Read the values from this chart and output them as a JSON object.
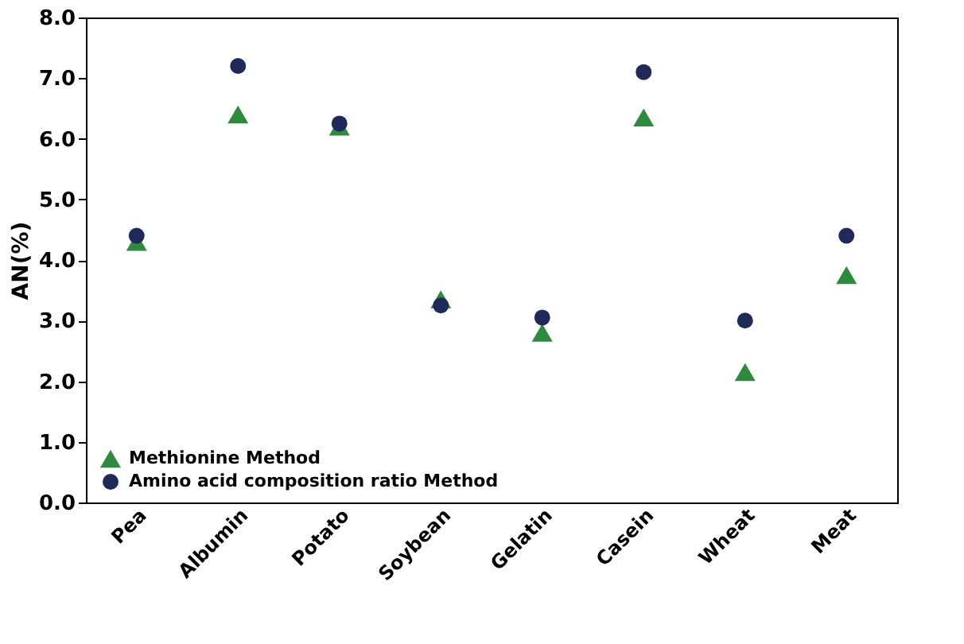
{
  "chart_data": {
    "type": "scatter",
    "ylabel": "AN(%)",
    "categories": [
      "Pea",
      "Albumin",
      "Potato",
      "Soybean",
      "Gelatin",
      "Casein",
      "Wheat",
      "Meat"
    ],
    "series": [
      {
        "name": "Methionine Method",
        "color": "#2e8b3e",
        "marker": "triangle",
        "values": [
          4.3,
          6.4,
          6.2,
          3.35,
          2.8,
          6.35,
          2.15,
          3.75
        ]
      },
      {
        "name": "Amino acid composition ratio Method",
        "color": "#1f2a5a",
        "marker": "circle",
        "values": [
          4.4,
          7.2,
          6.25,
          3.25,
          3.05,
          7.1,
          3.0,
          4.4
        ]
      }
    ],
    "ylim": [
      0,
      8
    ],
    "yticks": [
      {
        "value": 0,
        "label": "0.0"
      },
      {
        "value": 1,
        "label": "1.0"
      },
      {
        "value": 2,
        "label": "2.0"
      },
      {
        "value": 3,
        "label": "3.0"
      },
      {
        "value": 4,
        "label": "4.0"
      },
      {
        "value": 5,
        "label": "5.0"
      },
      {
        "value": 6,
        "label": "6.0"
      },
      {
        "value": 7,
        "label": "7.0"
      },
      {
        "value": 8,
        "label": "8.0"
      }
    ],
    "grid": false,
    "legend": "bottom left"
  }
}
